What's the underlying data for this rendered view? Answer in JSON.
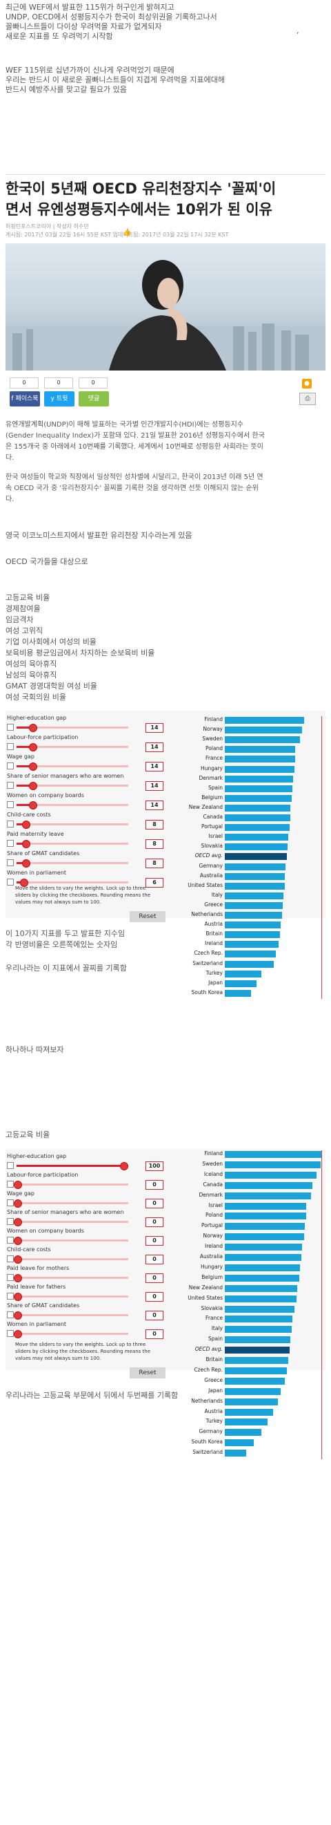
{
  "top_note": {
    "lines": [
      "최근에 WEF에서 발표한 115위가 허구인게 밝혀지고",
      "UNDP, OECD에서 성평등지수가 한국이 최상위권을 기록하고나서",
      "꼴빠니스트들이 다이상 우려먹을 자료가 없게되자",
      "새로운 지표를 또 우려먹기 시작함"
    ],
    "lines2": [
      "WEF 115위로 십년가까이 신나게 우려먹었기 때문에",
      "우리는 반드시 이 새로운 꼴빠니스트들이 지겹게 우려먹을 지표에대해",
      "반드시 예방주사를 맞고갈 필요가 있음"
    ],
    "mark": ","
  },
  "article": {
    "title_line1": "한국이 5년째 OECD 유리천장지수 '꼴찌'이",
    "title_line2": "면서 유엔성평등지수에서는 10위가 된 이유",
    "source": "허핑턴포스트코리아 | 작성자 허수민",
    "dates": "게시됨: 2017년 03월 22일 16시 55분 KST    업데이트됨: 2017년 03월 22일 17시 32분 KST",
    "counts": [
      "0",
      "0",
      "0"
    ],
    "share_buttons": [
      "f 페이스북",
      "y 트윗",
      "댓글"
    ],
    "body1": [
      "유엔개발계획(UNDP)이 매해 발표하는 국가별 인간개발지수(HDI)에는 성평등지수",
      "(Gender Inequality Index)가 포함돼 있다. 21일 발표한 2016년 성평등지수에서 한국",
      "은 155개국 중 아래에서 10번째를 기록했다. 세계에서 10번째로 성평등한 사회라는 뜻이",
      "다."
    ],
    "body2": [
      "한국 여성들이 학교와 직장에서 일상적인 성차별에 시달리고, 한국이 2013년 이래 5년 연",
      "속 OECD 국가 중 '유리천장지수' 꼴찌를 기록한 것을 생각하면 선뜻 이해되지 않는 순위",
      "다."
    ]
  },
  "notes": {
    "economist": "영국 이코노미스트지에서 발표한 유리천장 지수라는게 있음",
    "oecd": "OECD 국가들을 대상으로",
    "criteria": [
      "고등교육 비율",
      "경제참여율",
      "임금격차",
      "여성 고위직",
      "기업 이사회에서 여성의 비율",
      "보육비용 평균임금에서 차지하는 순보육비 비율",
      "여성의 육아휴직",
      "남성의 육아휴직",
      "GMAT 경영대학원 여성 비율",
      "여성 국회의원 비율"
    ],
    "after1": "이 10가지 지표를 두고 발표한 지수임",
    "after2": "각 반영비율은 오른쪽에있는 숫자임",
    "after3": "우리나라는 이 지표에서 꼴찌를 기록함",
    "after4": "하나하나 따져보자",
    "section_edu": "고등교육 비율",
    "final": "우리나라는 고등교육 부문에서 뒤에서 두번째를 기록함"
  },
  "interactive1": {
    "sliders": [
      {
        "label": "Higher-education gap",
        "value": "14",
        "level": 0.14
      },
      {
        "label": "Labour-force participation",
        "value": "14",
        "level": 0.14
      },
      {
        "label": "Wage gap",
        "value": "14",
        "level": 0.14
      },
      {
        "label": "Share of senior managers who are women",
        "value": "14",
        "level": 0.14
      },
      {
        "label": "Women on company boards",
        "value": "14",
        "level": 0.14
      },
      {
        "label": "Child-care costs",
        "value": "8",
        "level": 0.08
      },
      {
        "label": "Paid maternity leave",
        "value": "8",
        "level": 0.08
      },
      {
        "label": "Share of GMAT candidates",
        "value": "8",
        "level": 0.08
      },
      {
        "label": "Women in parliament",
        "value": "6",
        "level": 0.06
      }
    ],
    "note": "Move the sliders to vary the weights. Lock up to three sliders by clicking the checkboxes. Rounding means the values may not always sum to 100.",
    "reset": "Reset"
  },
  "interactive2": {
    "sliders": [
      {
        "label": "Higher-education gap",
        "value": "100",
        "level": 1.0
      },
      {
        "label": "Labour-force participation",
        "value": "0",
        "level": 0
      },
      {
        "label": "Wage gap",
        "value": "0",
        "level": 0
      },
      {
        "label": "Share of senior managers who are women",
        "value": "0",
        "level": 0
      },
      {
        "label": "Women on company boards",
        "value": "0",
        "level": 0
      },
      {
        "label": "Child-care costs",
        "value": "0",
        "level": 0
      },
      {
        "label": "Paid leave for mothers",
        "value": "0",
        "level": 0
      },
      {
        "label": "Paid leave for fathers",
        "value": "0",
        "level": 0
      },
      {
        "label": "Share of GMAT candidates",
        "value": "0",
        "level": 0
      },
      {
        "label": "Women in parliament",
        "value": "0",
        "level": 0
      }
    ],
    "note": "Move the sliders to vary the weights. Lock up to three sliders by clicking the checkboxes. Rounding means the values may not always sum to 100.",
    "reset": "Reset"
  },
  "chart_data": [
    {
      "type": "bar",
      "categories": [
        "Finland",
        "Norway",
        "Sweden",
        "Poland",
        "France",
        "Hungary",
        "Denmark",
        "Spain",
        "Belgium",
        "New Zealand",
        "Canada",
        "Portugal",
        "Israel",
        "Slovakia",
        "OECD avg.",
        "Germany",
        "Australia",
        "United States",
        "Italy",
        "Greece",
        "Netherlands",
        "Austria",
        "Britain",
        "Ireland",
        "Czech Rep.",
        "Switzerland",
        "Turkey",
        "Japan",
        "South Korea"
      ],
      "values": [
        82,
        80,
        78,
        73,
        73,
        72,
        71,
        70,
        69,
        68,
        68,
        67,
        66,
        65,
        64,
        63,
        62,
        62,
        61,
        60,
        59,
        58,
        57,
        56,
        53,
        51,
        38,
        33,
        27
      ],
      "highlight": "OECD avg."
    },
    {
      "type": "bar",
      "categories": [
        "Finland",
        "Sweden",
        "Iceland",
        "Canada",
        "Denmark",
        "Israel",
        "Poland",
        "Portugal",
        "Norway",
        "Ireland",
        "Australia",
        "Hungary",
        "Belgium",
        "New Zealand",
        "United States",
        "Slovakia",
        "France",
        "Italy",
        "Spain",
        "OECD avg.",
        "Britain",
        "Czech Rep.",
        "Greece",
        "Japan",
        "Netherlands",
        "Austria",
        "Turkey",
        "Germany",
        "South Korea",
        "Switzerland"
      ],
      "values": [
        100,
        99,
        95,
        91,
        89,
        84,
        84,
        83,
        82,
        80,
        79,
        78,
        77,
        75,
        74,
        72,
        70,
        69,
        68,
        67,
        66,
        64,
        62,
        58,
        55,
        50,
        44,
        38,
        30,
        22
      ],
      "highlight": "OECD avg."
    }
  ],
  "colors": {
    "bar": "#1aa3d9",
    "bar_highlight": "#0b4b74",
    "slider": "#d9202c",
    "facebook": "#3b5998",
    "twitter": "#1da1f2",
    "comment": "#8bc34a"
  },
  "icons": [
    "thumbs-up-icon",
    "rss-icon",
    "print-icon"
  ]
}
